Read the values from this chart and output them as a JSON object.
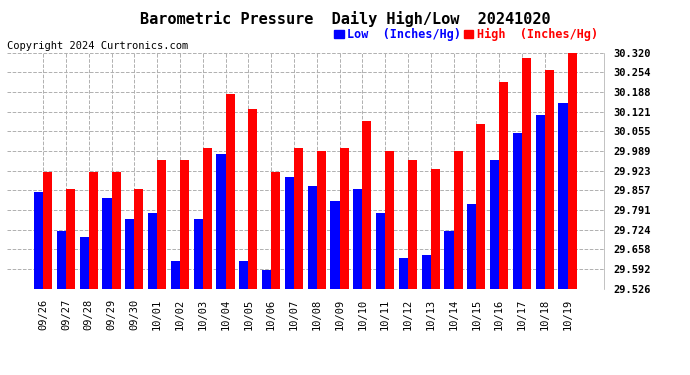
{
  "title": "Barometric Pressure  Daily High/Low  20241020",
  "copyright": "Copyright 2024 Curtronics.com",
  "legend_low": "Low  (Inches/Hg)",
  "legend_high": "High  (Inches/Hg)",
  "categories": [
    "09/26",
    "09/27",
    "09/28",
    "09/29",
    "09/30",
    "10/01",
    "10/02",
    "10/03",
    "10/04",
    "10/05",
    "10/06",
    "10/07",
    "10/08",
    "10/09",
    "10/10",
    "10/11",
    "10/12",
    "10/13",
    "10/14",
    "10/15",
    "10/16",
    "10/17",
    "10/18",
    "10/19"
  ],
  "high_values": [
    29.92,
    29.86,
    29.92,
    29.92,
    29.86,
    29.96,
    29.96,
    30.0,
    30.18,
    30.13,
    29.92,
    30.0,
    29.99,
    30.0,
    30.09,
    29.99,
    29.96,
    29.93,
    29.99,
    30.08,
    30.22,
    30.3,
    30.26,
    30.32
  ],
  "low_values": [
    29.85,
    29.72,
    29.7,
    29.83,
    29.76,
    29.78,
    29.62,
    29.76,
    29.98,
    29.62,
    29.59,
    29.9,
    29.87,
    29.82,
    29.86,
    29.78,
    29.63,
    29.64,
    29.72,
    29.81,
    29.96,
    30.05,
    30.11,
    30.15
  ],
  "ylim_min": 29.526,
  "ylim_max": 30.32,
  "yticks": [
    29.526,
    29.592,
    29.658,
    29.724,
    29.791,
    29.857,
    29.923,
    29.989,
    30.055,
    30.121,
    30.188,
    30.254,
    30.32
  ],
  "bar_color_high": "#ff0000",
  "bar_color_low": "#0000ff",
  "background_color": "#ffffff",
  "title_fontsize": 11,
  "tick_fontsize": 7.5,
  "copyright_fontsize": 7.5,
  "legend_fontsize": 8.5
}
